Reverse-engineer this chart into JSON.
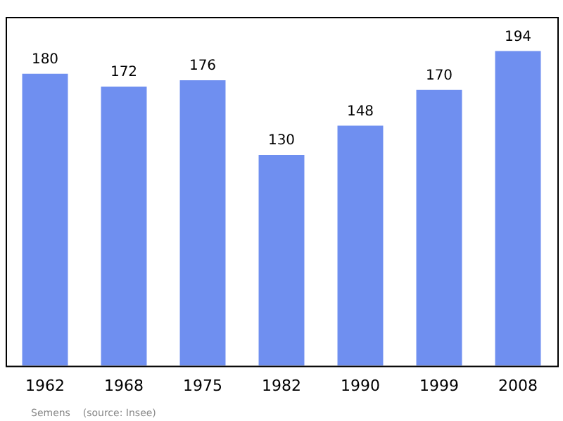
{
  "chart_data": {
    "type": "bar",
    "categories": [
      "1962",
      "1968",
      "1975",
      "1982",
      "1990",
      "1999",
      "2008"
    ],
    "values": [
      180,
      172,
      176,
      130,
      148,
      170,
      194
    ],
    "color": "#6f8ff0",
    "ylim": [
      0,
      215
    ],
    "tick_labels": "x",
    "data_labels": true,
    "grid": false,
    "legend": false,
    "annotations": [
      "Semens    (source: Insee)"
    ]
  }
}
